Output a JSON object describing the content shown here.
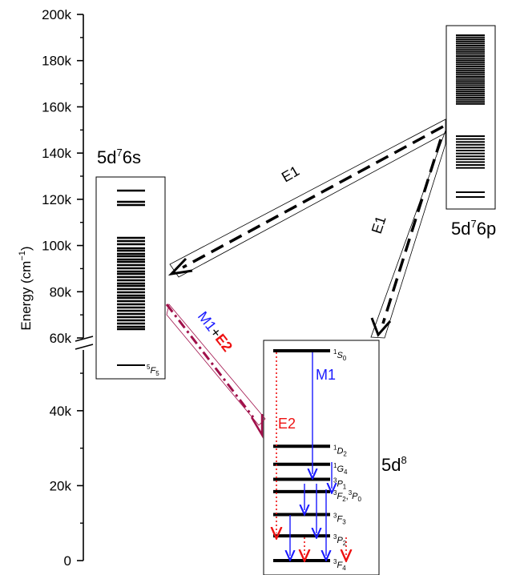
{
  "axis": {
    "title": "Energy (cm",
    "title_sup": "−1",
    "title_close": ")",
    "upper_ticks": [
      {
        "value": 60000,
        "label": "60k"
      },
      {
        "value": 80000,
        "label": "80k"
      },
      {
        "value": 100000,
        "label": "100k"
      },
      {
        "value": 120000,
        "label": "120k"
      },
      {
        "value": 140000,
        "label": "140k"
      },
      {
        "value": 160000,
        "label": "160k"
      },
      {
        "value": 180000,
        "label": "180k"
      },
      {
        "value": 200000,
        "label": "200k"
      }
    ],
    "lower_ticks": [
      {
        "value": 0,
        "label": "0"
      },
      {
        "value": 20000,
        "label": "20k"
      },
      {
        "value": 40000,
        "label": "40k"
      }
    ],
    "axis_break": true
  },
  "configs": {
    "c6s": {
      "base": "5d",
      "sup": "7",
      "rest": "6s"
    },
    "c6p": {
      "base": "5d",
      "sup": "7",
      "rest": "6p"
    },
    "c8": {
      "base": "5d",
      "sup": "8",
      "rest": ""
    }
  },
  "transitions": {
    "e1_a": "E1",
    "e1_b": "E1",
    "m1e2_m1": "M1",
    "m1e2_plus": "+",
    "m1e2_e2": "E2",
    "m1_inner": "M1",
    "e2_inner": "E2"
  },
  "ground_6s": {
    "sup": "5",
    "letter": "F",
    "sub": "5"
  },
  "levels_5d8": [
    {
      "sup": "1",
      "letter": "S",
      "sub": "0",
      "energy": 56000
    },
    {
      "sup": "1",
      "letter": "D",
      "sub": "2",
      "energy": 30500
    },
    {
      "sup": "1",
      "letter": "G",
      "sub": "4",
      "energy": 25700
    },
    {
      "sup": "3",
      "letter": "P",
      "sub": "1",
      "energy": 21700
    },
    {
      "sup": "3",
      "letter": "F",
      "sub": "2",
      "letter2": "P",
      "sup2": "3",
      "sub2": "0",
      "energy": 18400
    },
    {
      "sup": "3",
      "letter": "F",
      "sub": "3",
      "energy": 12300
    },
    {
      "sup": "3",
      "letter": "P",
      "sub": "2",
      "energy": 6600
    },
    {
      "sup": "3",
      "letter": "F",
      "sub": "4",
      "energy": 0
    }
  ],
  "colors": {
    "m1": "#1a1aff",
    "e2": "#ee1111",
    "m1e2_arrow": "#a0104a",
    "black": "#000000"
  }
}
